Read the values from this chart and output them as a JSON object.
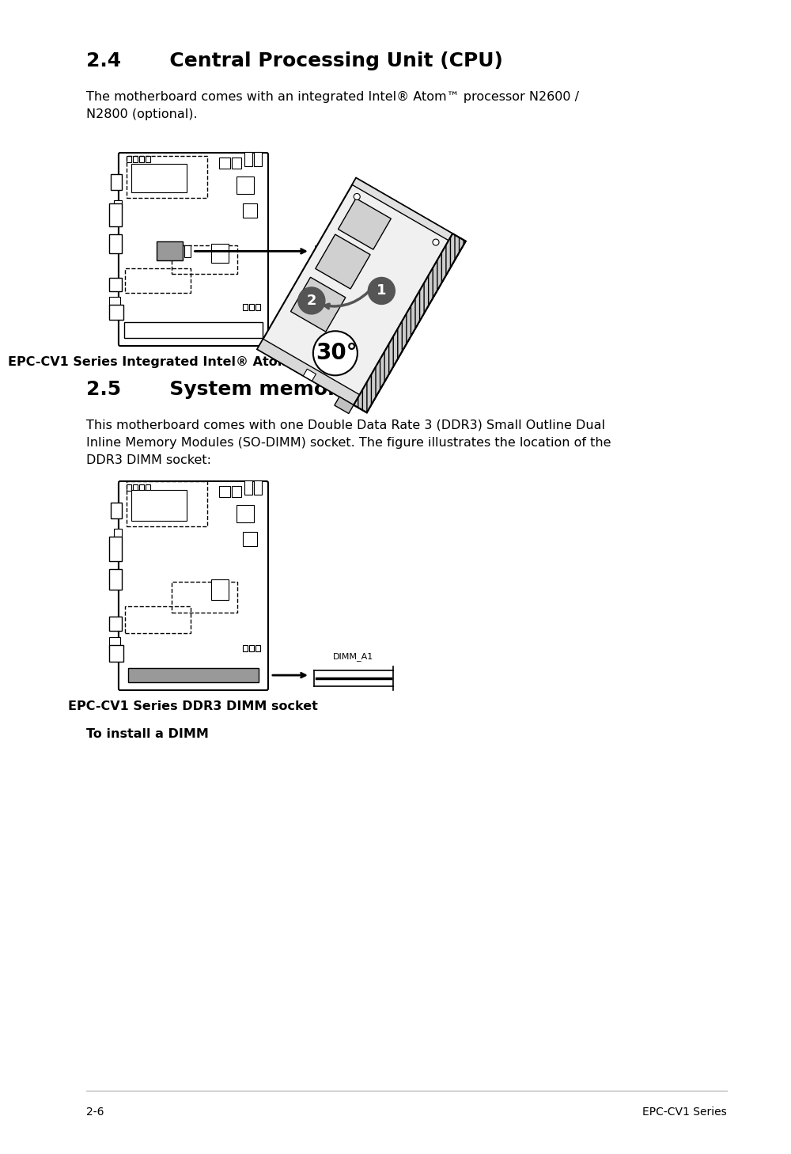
{
  "title_24": "2.4       Central Processing Unit (CPU)",
  "title_25": "2.5       System memory",
  "body_text_24": "The motherboard comes with an integrated Intel® Atom™ processor N2600 /\nN2800 (optional).",
  "body_text_25": "This motherboard comes with one Double Data Rate 3 (DDR3) Small Outline Dual\nInline Memory Modules (SO-DIMM) socket. The figure illustrates the location of the\nDDR3 DIMM socket:",
  "caption_24": "EPC-CV1 Series Integrated Intel® Atom™ processor",
  "caption_25": "EPC-CV1 Series DDR3 DIMM socket",
  "label_24": "Integrated Intel®\nAtom™ processor",
  "label_25": "DIMM_A1",
  "to_install": "To install a DIMM",
  "footer_left": "2-6",
  "footer_right": "EPC-CV1 Series",
  "bg_color": "#ffffff",
  "text_color": "#000000",
  "gray_chip": "#999999",
  "dark_gray": "#555555",
  "circ_color": "#555555"
}
